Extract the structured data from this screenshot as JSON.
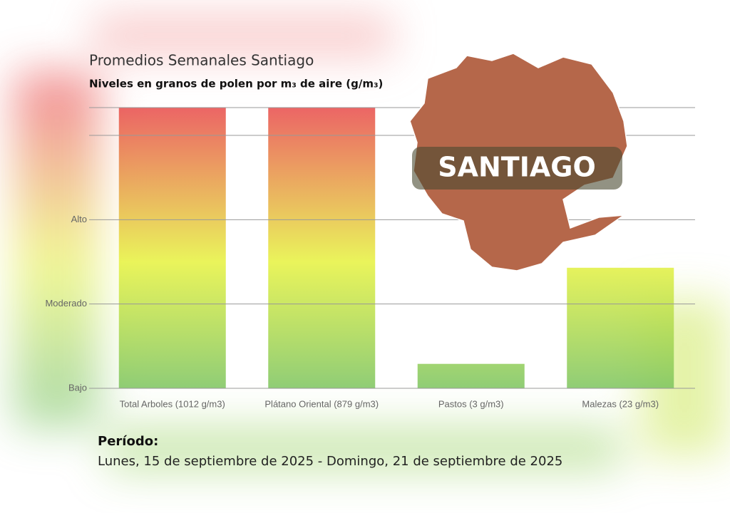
{
  "chart_data": {
    "type": "bar",
    "title": "Promedios Semanales Santiago",
    "subtitle": "Niveles en granos de polen por m₃ de aire (g/m₃)",
    "categories": [
      "Total Arboles (1012 g/m3)",
      "Plátano Oriental (879 g/m3)",
      "Pastos (3 g/m3)",
      "Malezas (23 g/m3)"
    ],
    "values": [
      3.33,
      3.33,
      0.29,
      1.43
    ],
    "gradient": [
      "#e84a4a",
      "#e6f23e",
      "#7cc45e"
    ],
    "ylim": [
      0,
      3.33
    ],
    "yticks": [
      {
        "value": 0,
        "label": "Bajo"
      },
      {
        "value": 1,
        "label": "Moderado"
      },
      {
        "value": 2,
        "label": "Alto"
      },
      {
        "value": 3,
        "label": null
      },
      {
        "value": 3.33,
        "label": null
      }
    ],
    "grid": true
  },
  "map_label": "SANTIAGO",
  "period_label": "Período:",
  "period": "Lunes, 15 de septiembre de 2025 - Domingo, 21 de septiembre de 2025"
}
